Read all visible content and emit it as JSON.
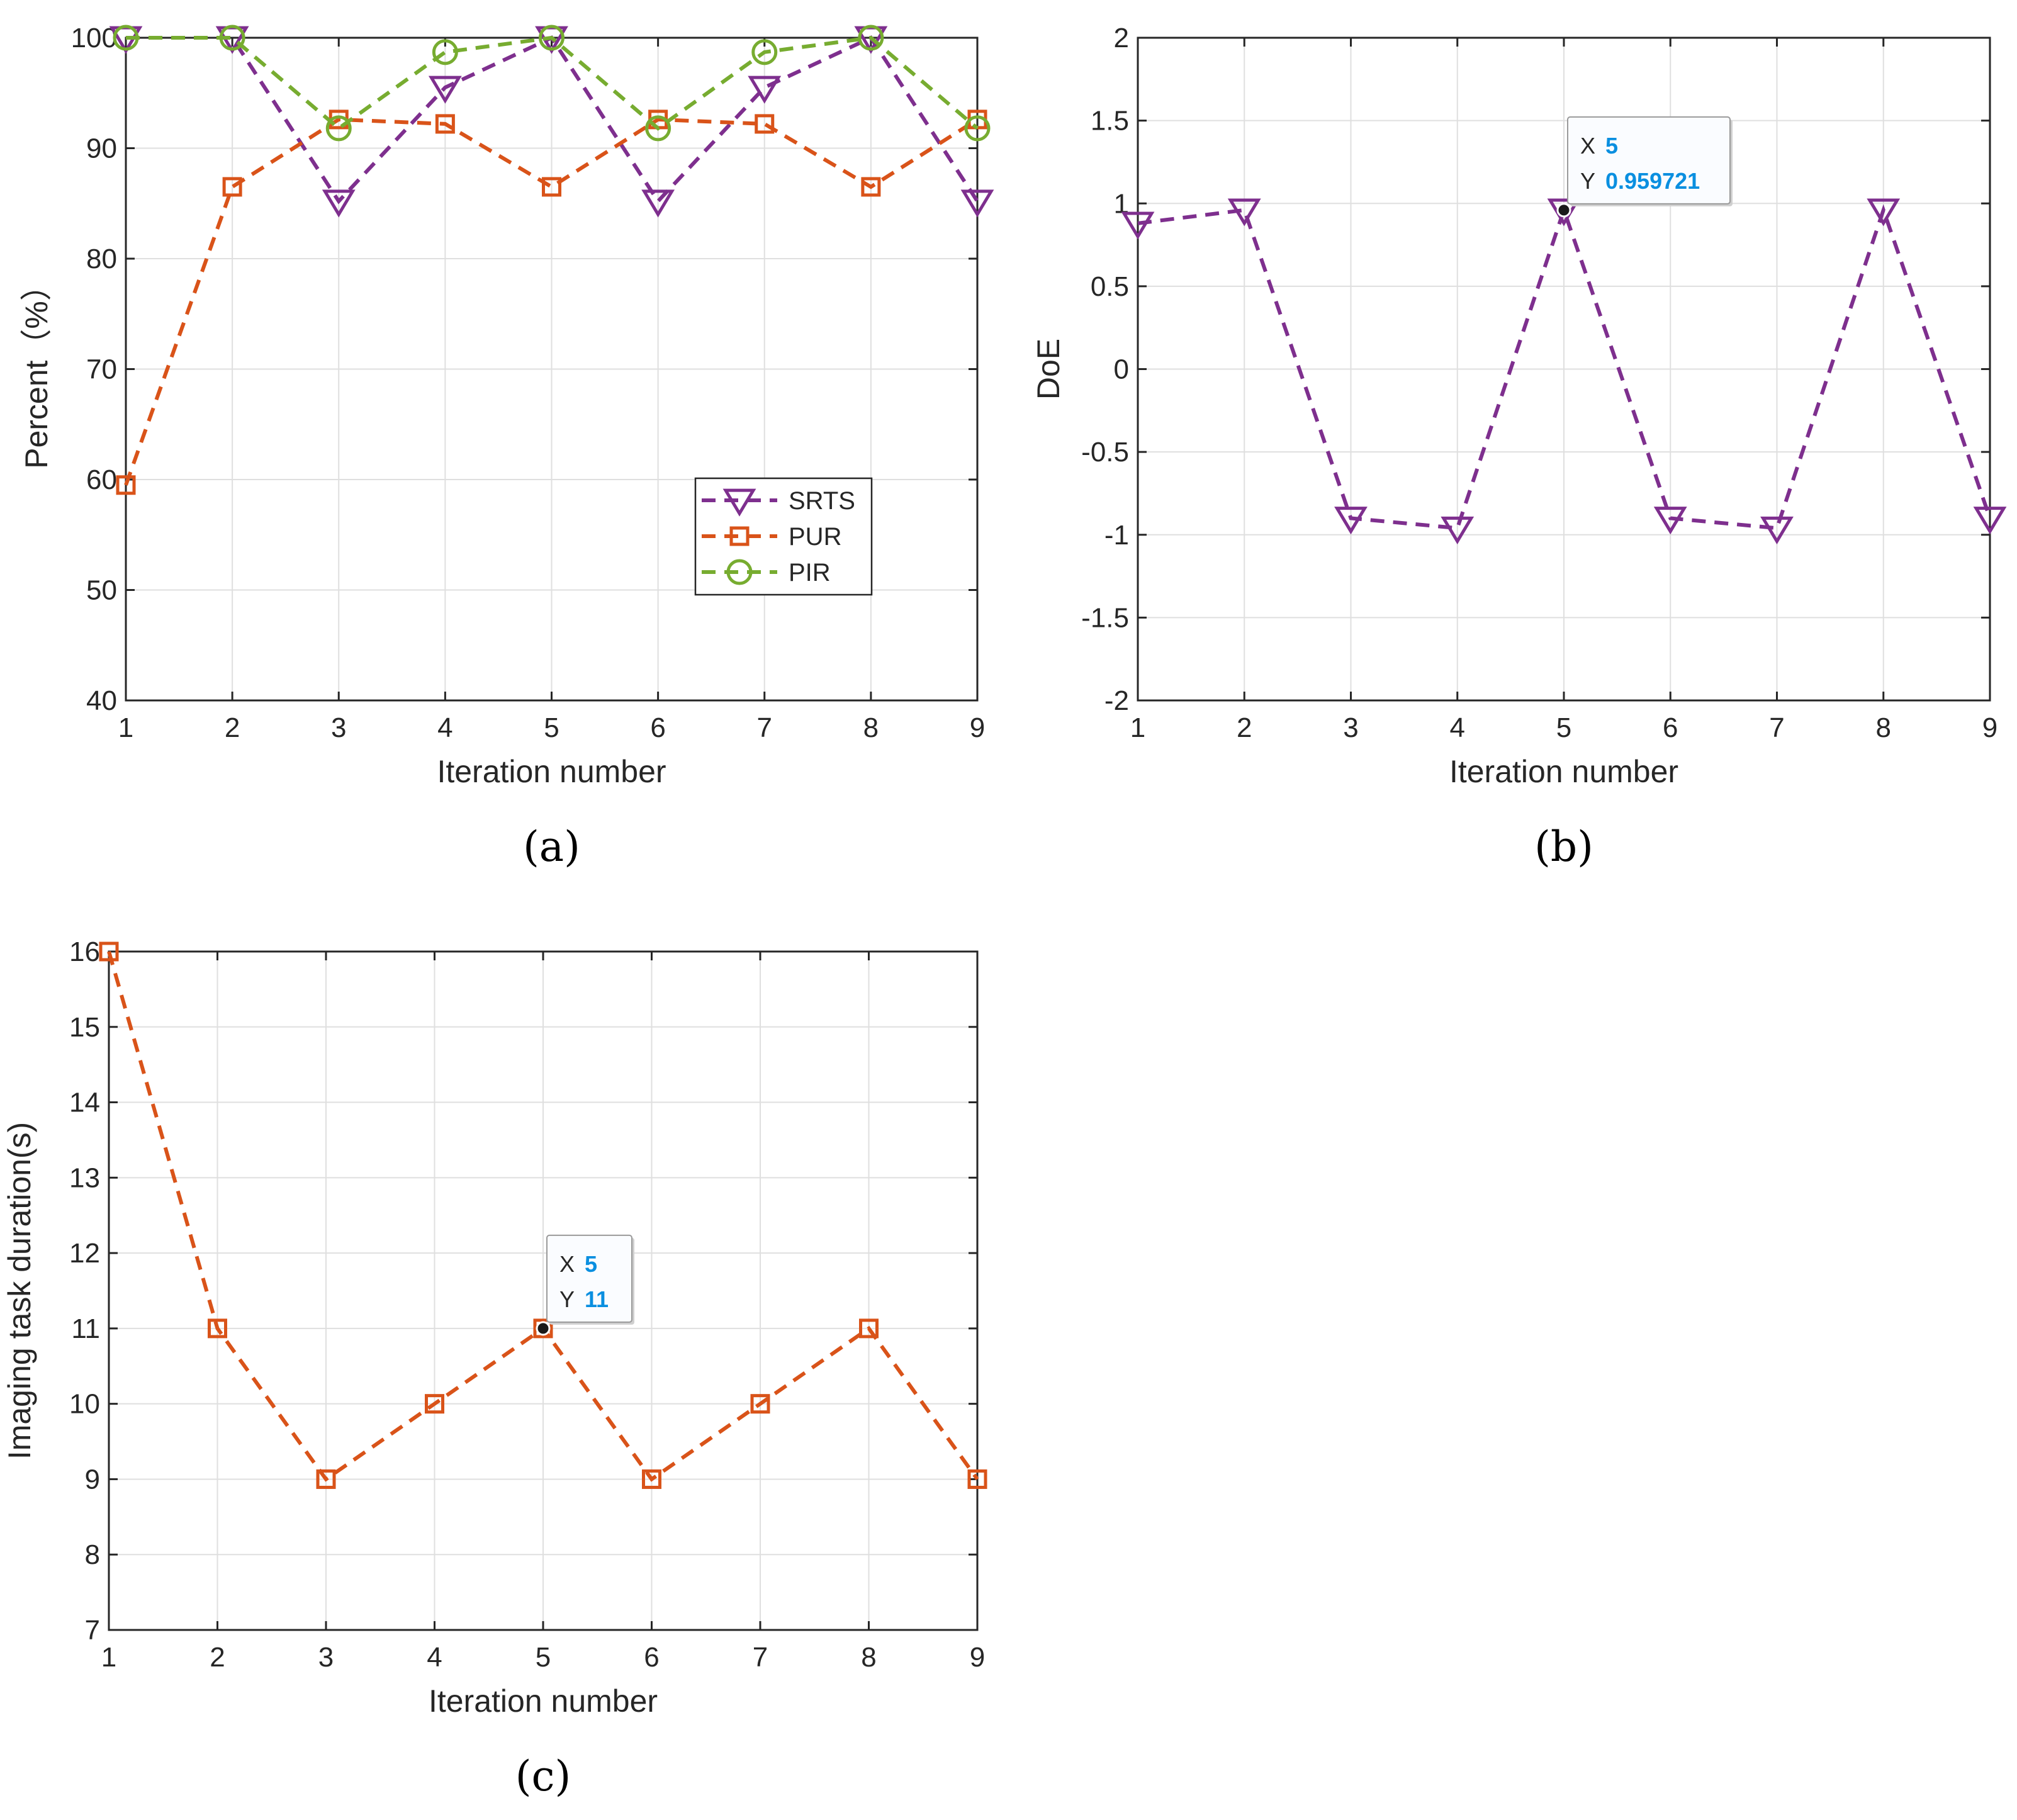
{
  "colors": {
    "purple": "#7E2F8E",
    "orange": "#D95319",
    "green": "#77AC30",
    "grid": "#DFDFDF",
    "axis": "#262626",
    "tip_value": "#0A8FE0"
  },
  "chart_data": [
    {
      "id": "a",
      "type": "line",
      "panel_label": "(a)",
      "title": "",
      "xlabel": "Iteration number",
      "ylabel": "Percent（%）",
      "xlim": [
        1,
        9
      ],
      "ylim": [
        40,
        100
      ],
      "xticks": [
        "1",
        "2",
        "3",
        "4",
        "5",
        "6",
        "7",
        "8",
        "9"
      ],
      "yticks": [
        "40",
        "50",
        "60",
        "70",
        "80",
        "90",
        "100"
      ],
      "grid": true,
      "legend_position": "lower-right",
      "x": [
        1,
        2,
        3,
        4,
        5,
        6,
        7,
        8,
        9
      ],
      "series": [
        {
          "name": "SRTS",
          "color": "#7E2F8E",
          "marker": "triangle-down",
          "values": [
            100,
            100,
            85.2,
            95.5,
            100,
            85.2,
            95.5,
            100,
            85.2
          ]
        },
        {
          "name": "PUR",
          "color": "#D95319",
          "marker": "square",
          "values": [
            59.5,
            86.5,
            92.6,
            92.2,
            86.5,
            92.6,
            92.2,
            86.5,
            92.6
          ]
        },
        {
          "name": "PIR",
          "color": "#77AC30",
          "marker": "circle",
          "values": [
            100,
            100,
            91.8,
            98.7,
            100,
            91.8,
            98.7,
            100,
            91.8
          ]
        }
      ]
    },
    {
      "id": "b",
      "type": "line",
      "panel_label": "(b)",
      "title": "",
      "xlabel": "Iteration number",
      "ylabel": "DoE",
      "xlim": [
        1,
        9
      ],
      "ylim": [
        -2,
        2
      ],
      "xticks": [
        "1",
        "2",
        "3",
        "4",
        "5",
        "6",
        "7",
        "8",
        "9"
      ],
      "yticks": [
        "-2",
        "-1.5",
        "-1",
        "-0.5",
        "0",
        "0.5",
        "1",
        "1.5",
        "2"
      ],
      "grid": true,
      "x": [
        1,
        2,
        3,
        4,
        5,
        6,
        7,
        8,
        9
      ],
      "series": [
        {
          "color": "#7E2F8E",
          "marker": "triangle-down",
          "values": [
            0.88,
            0.96,
            -0.9,
            -0.96,
            0.96,
            -0.9,
            -0.96,
            0.96,
            -0.9
          ]
        }
      ],
      "datatip": {
        "x": 5,
        "y": 0.959721,
        "x_label": "X",
        "y_label": "Y",
        "x_text": "5",
        "y_text": "0.959721"
      }
    },
    {
      "id": "c",
      "type": "line",
      "panel_label": "(c)",
      "title": "",
      "xlabel": "Iteration number",
      "ylabel": "Imaging task duration(s)",
      "xlim": [
        1,
        9
      ],
      "ylim": [
        7,
        16
      ],
      "xticks": [
        "1",
        "2",
        "3",
        "4",
        "5",
        "6",
        "7",
        "8",
        "9"
      ],
      "yticks": [
        "7",
        "8",
        "9",
        "10",
        "11",
        "12",
        "13",
        "14",
        "15",
        "16"
      ],
      "grid": true,
      "x": [
        1,
        2,
        3,
        4,
        5,
        6,
        7,
        8,
        9
      ],
      "series": [
        {
          "color": "#D95319",
          "marker": "square",
          "values": [
            16,
            11,
            9,
            10,
            11,
            9,
            10,
            11,
            9
          ]
        }
      ],
      "datatip": {
        "x": 5,
        "y": 11,
        "x_label": "X",
        "y_label": "Y",
        "x_text": "5",
        "y_text": "11"
      }
    }
  ]
}
